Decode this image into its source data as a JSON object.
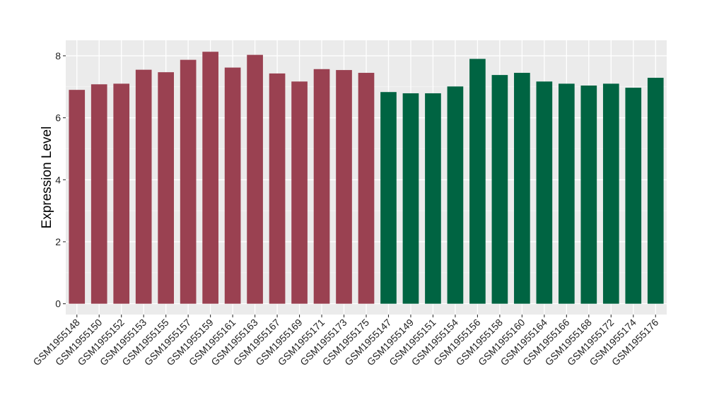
{
  "chart_data": {
    "type": "bar",
    "ylabel": "Expression Level",
    "xlabel": "",
    "ylim": [
      -0.35,
      8.5
    ],
    "yticks": [
      0,
      2,
      4,
      6,
      8
    ],
    "ytick_labels": [
      "0",
      "2",
      "4",
      "6",
      "8"
    ],
    "grid": true,
    "panel_background": "#EBEBEB",
    "categories": [
      "GSM1955148",
      "GSM1955150",
      "GSM1955152",
      "GSM1955153",
      "GSM1955155",
      "GSM1955157",
      "GSM1955159",
      "GSM1955161",
      "GSM1955163",
      "GSM1955167",
      "GSM1955169",
      "GSM1955171",
      "GSM1955173",
      "GSM1955175",
      "GSM1955147",
      "GSM1955149",
      "GSM1955151",
      "GSM1955154",
      "GSM1955156",
      "GSM1955158",
      "GSM1955160",
      "GSM1955164",
      "GSM1955166",
      "GSM1955168",
      "GSM1955172",
      "GSM1955174",
      "GSM1955176"
    ],
    "values": [
      6.9,
      7.08,
      7.1,
      7.55,
      7.47,
      7.87,
      8.13,
      7.62,
      8.03,
      7.43,
      7.17,
      7.57,
      7.54,
      7.45,
      6.83,
      6.79,
      6.79,
      7.01,
      7.9,
      7.38,
      7.45,
      7.17,
      7.1,
      7.04,
      7.1,
      6.97,
      7.29
    ],
    "groups": [
      {
        "color": "#9A4151",
        "count": 14
      },
      {
        "color": "#006442",
        "count": 13
      }
    ]
  }
}
